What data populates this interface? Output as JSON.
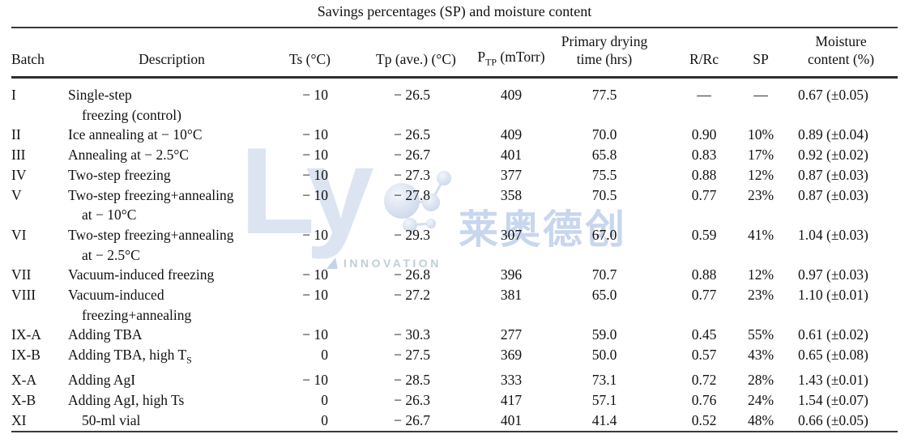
{
  "title": "Savings percentages (SP) and moisture content",
  "watermark": {
    "logo_text": "Ly",
    "cjk_text": "莱奥德创",
    "tagline": "INNOVATION",
    "logo_color": "#dce4f2",
    "cjk_color": "#c8d6ee",
    "tagline_color": "#bfcfd4",
    "sphere_color_light": "#f2f6fb",
    "sphere_color_dark": "#ccd7ea"
  },
  "table": {
    "headers": {
      "batch": "Batch",
      "description": "Description",
      "ts": "Ts (°C)",
      "tp": "Tp (ave.) (°C)",
      "ptp_base": "P",
      "ptp_sub": "TP",
      "ptp_rest": " (mTorr)",
      "pdt_line1": "Primary drying",
      "pdt_line2": "time (hrs)",
      "rrc": "R/Rc",
      "sp": "SP",
      "mc_line1": "Moisture",
      "mc_line2": "content (%)"
    },
    "rows": [
      {
        "batch": "I",
        "desc": "Single-step",
        "desc2": "freezing (control)",
        "ts": "− 10",
        "tp": "− 26.5",
        "ptp": "409",
        "pdt": "77.5",
        "rrc": "—",
        "sp": "—",
        "mc": "0.67 (±0.05)"
      },
      {
        "batch": "II",
        "desc": "Ice annealing at − 10°C",
        "ts": "− 10",
        "tp": "− 26.5",
        "ptp": "409",
        "pdt": "70.0",
        "rrc": "0.90",
        "sp": "10%",
        "mc": "0.89 (±0.04)"
      },
      {
        "batch": "III",
        "desc": "Annealing at − 2.5°C",
        "ts": "− 10",
        "tp": "− 26.7",
        "ptp": "401",
        "pdt": "65.8",
        "rrc": "0.83",
        "sp": "17%",
        "mc": "0.92 (±0.02)"
      },
      {
        "batch": "IV",
        "desc": "Two-step freezing",
        "ts": "− 10",
        "tp": "− 27.3",
        "ptp": "377",
        "pdt": "75.5",
        "rrc": "0.88",
        "sp": "12%",
        "mc": "0.87 (±0.03)"
      },
      {
        "batch": "V",
        "desc": "Two-step freezing+annealing",
        "desc2": "at − 10°C",
        "ts": "− 10",
        "tp": "− 27.8",
        "ptp": "358",
        "pdt": "70.5",
        "rrc": "0.77",
        "sp": "23%",
        "mc": "0.87 (±0.03)"
      },
      {
        "batch": "VI",
        "desc": "Two-step freezing+annealing",
        "desc2": "at − 2.5°C",
        "ts": "− 10",
        "tp": "− 29.3",
        "ptp": "307",
        "pdt": "67.0",
        "rrc": "0.59",
        "sp": "41%",
        "mc": "1.04 (±0.03)"
      },
      {
        "batch": "VII",
        "desc": "Vacuum-induced freezing",
        "ts": "− 10",
        "tp": "− 26.8",
        "ptp": "396",
        "pdt": "70.7",
        "rrc": "0.88",
        "sp": "12%",
        "mc": "0.97 (±0.03)"
      },
      {
        "batch": "VIII",
        "desc": "Vacuum-induced",
        "desc2": "freezing+annealing",
        "ts": "− 10",
        "tp": "− 27.2",
        "ptp": "381",
        "pdt": "65.0",
        "rrc": "0.77",
        "sp": "23%",
        "mc": "1.10 (±0.01)"
      },
      {
        "batch": "IX-A",
        "desc": "Adding TBA",
        "ts": "− 10",
        "tp": "− 30.3",
        "ptp": "277",
        "pdt": "59.0",
        "rrc": "0.45",
        "sp": "55%",
        "mc": "0.61 (±0.02)"
      },
      {
        "batch": "IX-B",
        "desc": "Adding TBA, high T",
        "desc_sub": "S",
        "ts": "0",
        "tp": "− 27.5",
        "ptp": "369",
        "pdt": "50.0",
        "rrc": "0.57",
        "sp": "43%",
        "mc": "0.65 (±0.08)"
      },
      {
        "batch": "X-A",
        "desc": "Adding AgI",
        "ts": "− 10",
        "tp": "− 28.5",
        "ptp": "333",
        "pdt": "73.1",
        "rrc": "0.72",
        "sp": "28%",
        "mc": "1.43 (±0.01)"
      },
      {
        "batch": "X-B",
        "desc": "Adding AgI, high Ts",
        "ts": "0",
        "tp": "− 26.3",
        "ptp": "417",
        "pdt": "57.1",
        "rrc": "0.76",
        "sp": "24%",
        "mc": "1.54 (±0.07)"
      },
      {
        "batch": "XI",
        "desc": "50-ml vial",
        "desc_indent": true,
        "ts": "0",
        "tp": "− 26.7",
        "ptp": "401",
        "pdt": "41.4",
        "rrc": "0.52",
        "sp": "48%",
        "mc": "0.66 (±0.05)"
      }
    ]
  }
}
